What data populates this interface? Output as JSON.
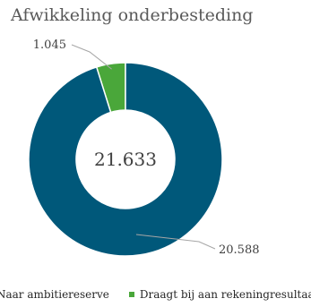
{
  "chart_data": {
    "type": "pie",
    "title": "Afwikkeling onderbesteding",
    "center_label": "21.633",
    "series": [
      {
        "name": "Naar ambitiereserve",
        "value": 20588,
        "label": "20.588",
        "color": "#00587a"
      },
      {
        "name": "Draagt bij aan rekeningresultaat",
        "value": 1045,
        "label": "1.045",
        "color": "#4aa73a"
      }
    ],
    "legend_position": "bottom"
  }
}
